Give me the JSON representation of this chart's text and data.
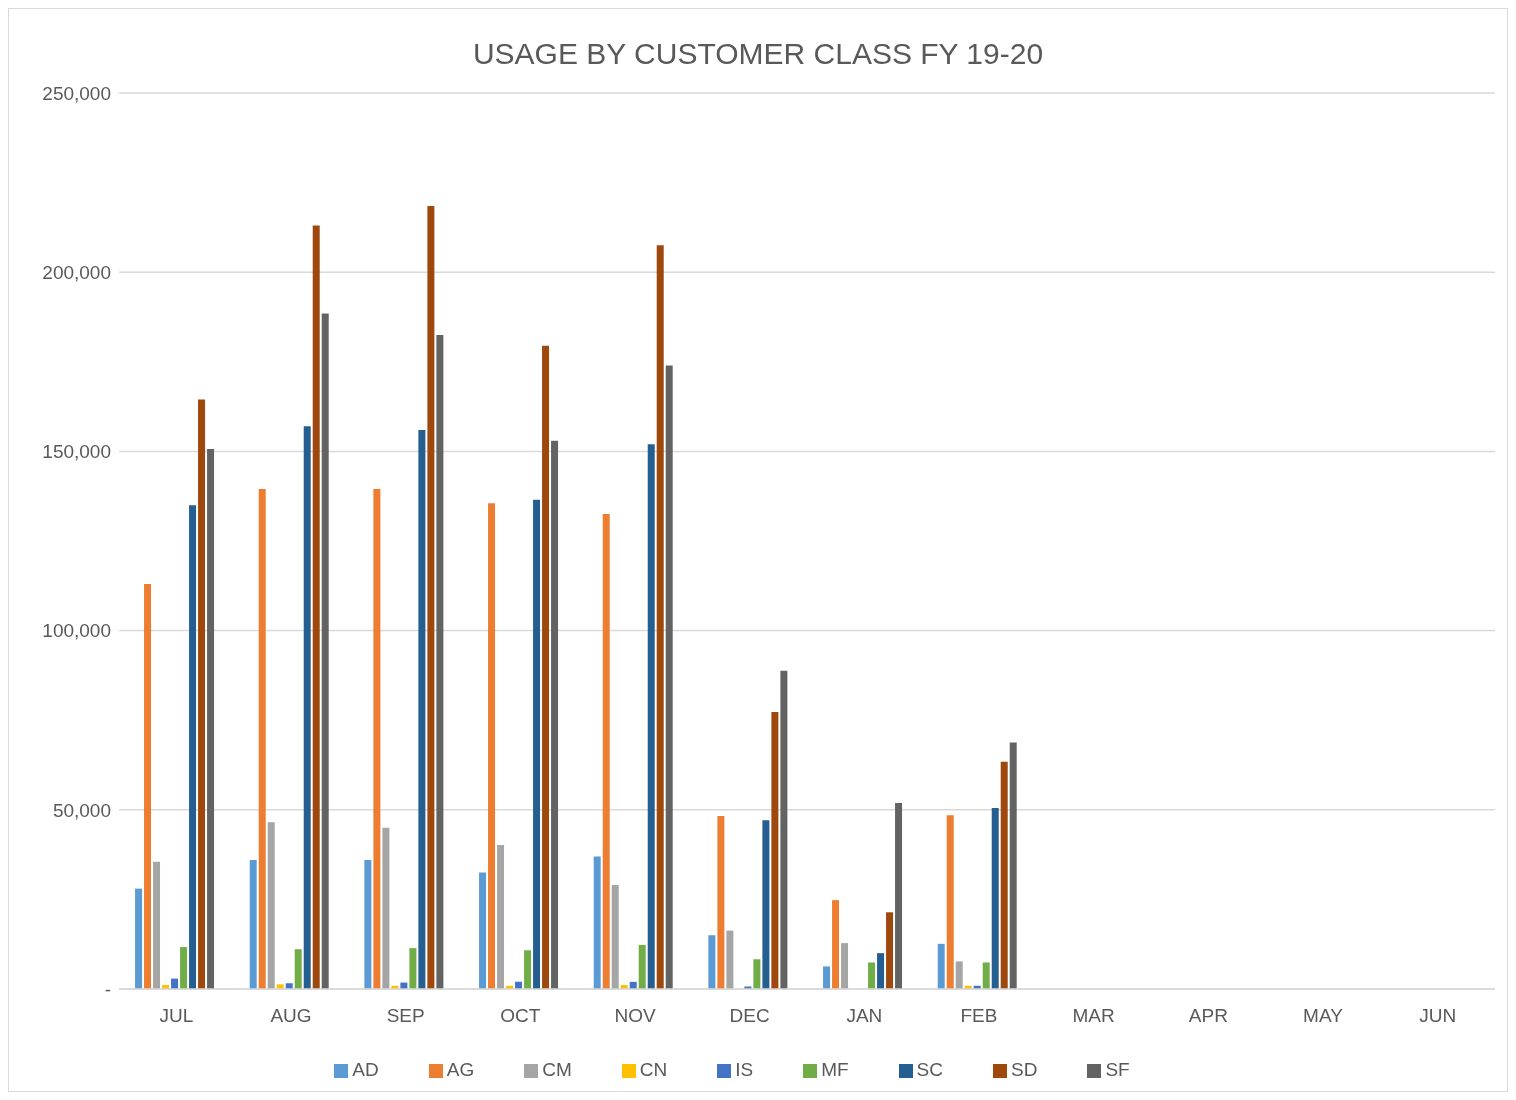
{
  "chart_data": {
    "type": "bar",
    "title": "USAGE BY CUSTOMER CLASS FY 19-20",
    "categories": [
      "JUL",
      "AUG",
      "SEP",
      "OCT",
      "NOV",
      "DEC",
      "JAN",
      "FEB",
      "MAR",
      "APR",
      "MAY",
      "JUN"
    ],
    "series": [
      {
        "name": "AD",
        "color": "#5b9bd5",
        "values": [
          28000,
          36000,
          36000,
          32500,
          37000,
          15000,
          6300,
          12600,
          null,
          null,
          null,
          null
        ]
      },
      {
        "name": "AG",
        "color": "#ed7d31",
        "values": [
          113000,
          139500,
          139500,
          135500,
          132500,
          48300,
          24800,
          48500,
          null,
          null,
          null,
          null
        ]
      },
      {
        "name": "CM",
        "color": "#a5a5a5",
        "values": [
          35500,
          46500,
          45000,
          40200,
          29000,
          16300,
          12800,
          7700,
          null,
          null,
          null,
          null
        ]
      },
      {
        "name": "CN",
        "color": "#ffc000",
        "values": [
          1100,
          1300,
          900,
          900,
          1100,
          null,
          null,
          900,
          null,
          null,
          null,
          null
        ]
      },
      {
        "name": "IS",
        "color": "#4472c4",
        "values": [
          2900,
          1600,
          1800,
          2000,
          2000,
          700,
          null,
          900,
          null,
          null,
          null,
          null
        ]
      },
      {
        "name": "MF",
        "color": "#70ad47",
        "values": [
          11700,
          11100,
          11400,
          10800,
          12300,
          8300,
          7400,
          7400,
          null,
          null,
          null,
          null
        ]
      },
      {
        "name": "SC",
        "color": "#255e91",
        "values": [
          135000,
          157000,
          156000,
          136500,
          152000,
          47100,
          10000,
          50500,
          null,
          null,
          null,
          null
        ]
      },
      {
        "name": "SD",
        "color": "#9e480e",
        "values": [
          164500,
          213000,
          218500,
          179500,
          207500,
          77300,
          21400,
          63400,
          null,
          null,
          null,
          null
        ]
      },
      {
        "name": "SF",
        "color": "#636363",
        "values": [
          150700,
          188500,
          182500,
          153000,
          174000,
          88800,
          51900,
          68800,
          null,
          null,
          null,
          null
        ]
      }
    ],
    "ylim": [
      0,
      250000
    ],
    "yticks": [
      {
        "value": 0,
        "label": "-"
      },
      {
        "value": 50000,
        "label": "50,000"
      },
      {
        "value": 100000,
        "label": "100,000"
      },
      {
        "value": 150000,
        "label": "150,000"
      },
      {
        "value": 200000,
        "label": "200,000"
      },
      {
        "value": 250000,
        "label": "250,000"
      }
    ],
    "grid": "y",
    "legend": "bottom"
  }
}
